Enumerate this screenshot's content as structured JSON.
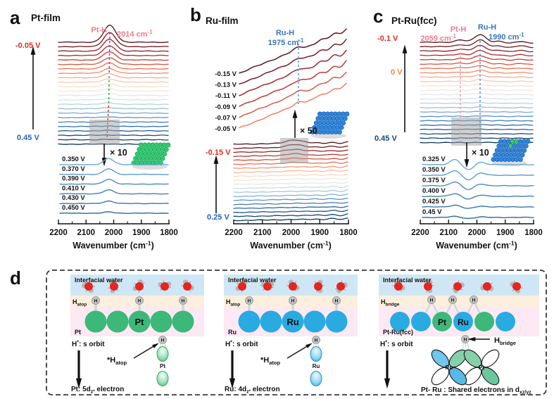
{
  "figure": {
    "panels": {
      "a": {
        "letter": "a",
        "title": "Pt-film",
        "peak_label": "Pt-H",
        "peak_value": {
          "base": "2014 cm",
          "sup": "-1"
        },
        "v_top": "-0.05 V",
        "v_bottom": "0.45 V",
        "magnification": "× 10",
        "inset_potentials": [
          "0.350 V",
          "0.370 V",
          "0.390 V",
          "0.410 V",
          "0.430 V",
          "0.450 V"
        ],
        "x_ticks": [
          "2200",
          "2100",
          "2000",
          "1900",
          "1800"
        ],
        "xlabel": {
          "base": "Wavenumber (cm",
          "sup": "-1",
          "post": ")"
        }
      },
      "b": {
        "letter": "b",
        "title": "Ru-film",
        "peak_label": "Ru-H",
        "peak_value": {
          "base": "1975 cm",
          "sup": "-1"
        },
        "v_top": "-0.15 V",
        "v_bottom": "0.25 V",
        "magnification": "× 50",
        "magnified_potentials": [
          "-0.15 V",
          "-0.13 V",
          "-0.11 V",
          "-0.09 V",
          "-0.07 V",
          "-0.05 V"
        ],
        "x_ticks": [
          "2200",
          "2100",
          "2000",
          "1900",
          "1800"
        ],
        "xlabel": {
          "base": "Wavenumber (cm",
          "sup": "-1",
          "post": ")"
        }
      },
      "c": {
        "letter": "c",
        "title": "Pt-Ru(fcc)",
        "peak1_label": "Pt-H",
        "peak1_value": {
          "base": "2059 cm",
          "sup": "-1"
        },
        "peak2_label": "Ru-H",
        "peak2_value": {
          "base": "1990 cm",
          "sup": "-1"
        },
        "v_top": "-0.1 V",
        "v_mid": "0 V",
        "v_bottom": "0.45 V",
        "magnification": "× 10",
        "inset_potentials": [
          "0.325 V",
          "0.350 V",
          "0.375 V",
          "0.400 V",
          "0.425 V",
          "0.45 V"
        ],
        "x_ticks": [
          "2200",
          "2100",
          "2000",
          "1900",
          "1800"
        ],
        "xlabel": {
          "base": "Wavenumber (cm",
          "sup": "-1",
          "post": ")"
        }
      },
      "d": {
        "letter": "d",
        "h_symbol": "H",
        "schemes": [
          {
            "water_label": "Interfacial water",
            "site": {
              "base": "H",
              "sub": "atop"
            },
            "surface": "Pt",
            "center_atom": "Pt",
            "orbit": {
              "base": "H",
              "sup": "*",
              "post": ": s orbit"
            },
            "ads": {
              "base": "*H",
              "sub": "atop"
            },
            "orbital_atom": "Pt",
            "result": {
              "base": "Pt: 5d",
              "sub": "z²",
              "post": " electron"
            }
          },
          {
            "water_label": "Interfacial water",
            "site": {
              "base": "H",
              "sub": "atop"
            },
            "surface": "Ru",
            "center_atom": "Ru",
            "orbit": {
              "base": "H",
              "sup": "*",
              "post": ": s orbit"
            },
            "ads": {
              "base": "*H",
              "sub": "atop"
            },
            "orbital_atom": "Ru",
            "result": {
              "base": "Ru: 4d",
              "sub": "z²",
              "post": " electron"
            }
          },
          {
            "water_label": "Interfacial water",
            "site": {
              "base": "H",
              "sub": "bridge"
            },
            "surface": "Pt-Ru(fcc)",
            "pt_atom": "Pt",
            "ru_atom": "Ru",
            "orbit": {
              "base": "H",
              "sup": "*",
              "post": ": s orbit"
            },
            "bridge": {
              "base": "H",
              "sub": "bridge"
            },
            "orbital_left": "Ru",
            "orbital_right": "Pt",
            "result": {
              "base": "Pt- Ru : Shared electrons in d",
              "sub": "xz/yz"
            }
          }
        ]
      }
    }
  },
  "chart_data": [
    {
      "type": "line",
      "panel": "a",
      "title": "Pt-film",
      "xlabel": "Wavenumber (cm-1)",
      "x_range": [
        2200,
        1800
      ],
      "x_ticks": [
        2200,
        2100,
        2000,
        1900,
        1800
      ],
      "peaks": [
        {
          "label": "Pt-H",
          "wavenumber": 2014
        }
      ],
      "potential_series": {
        "from": "-0.05 V",
        "to": "0.45 V",
        "n_curves": 24,
        "colormap": "dark red (negative potential, large Pt-H peak) to dark blue (positive potential, flat)"
      },
      "inset": {
        "magnification": "× 10",
        "potentials": [
          "0.350 V",
          "0.370 V",
          "0.390 V",
          "0.410 V",
          "0.430 V",
          "0.450 V"
        ],
        "description": "magnified Pt-H band near 2020 cm-1 vanishing with increasing potential"
      }
    },
    {
      "type": "line",
      "panel": "b",
      "title": "Ru-film",
      "xlabel": "Wavenumber (cm-1)",
      "x_range": [
        2200,
        1800
      ],
      "x_ticks": [
        2200,
        2100,
        2000,
        1900,
        1800
      ],
      "peaks": [
        {
          "label": "Ru-H",
          "wavenumber": 1975
        }
      ],
      "potential_series": {
        "from": "-0.15 V",
        "to": "0.25 V",
        "n_curves": 20,
        "colormap": "dark red (negative) to dark blue (positive), nearly flat bands"
      },
      "magnified": {
        "magnification": "× 50",
        "potentials": [
          "-0.15 V",
          "-0.13 V",
          "-0.11 V",
          "-0.09 V",
          "-0.07 V",
          "-0.05 V"
        ],
        "description": "weak Ru-H feature at 1975 cm-1 on rising noisy baseline"
      }
    },
    {
      "type": "line",
      "panel": "c",
      "title": "Pt-Ru(fcc)",
      "xlabel": "Wavenumber (cm-1)",
      "x_range": [
        2200,
        1800
      ],
      "x_ticks": [
        2200,
        2100,
        2000,
        1900,
        1800
      ],
      "peaks": [
        {
          "label": "Pt-H",
          "wavenumber": 2059
        },
        {
          "label": "Ru-H",
          "wavenumber": 1990
        }
      ],
      "potential_series": {
        "from": "-0.1 V",
        "mid": "0 V",
        "to": "0.45 V",
        "n_curves": 24,
        "colormap": "dark red to dark blue; Ru-H peak dominant, small Pt-H shoulder"
      },
      "inset": {
        "magnification": "× 10",
        "potentials": [
          "0.325 V",
          "0.350 V",
          "0.375 V",
          "0.400 V",
          "0.425 V",
          "0.45 V"
        ],
        "description": "derivative-like wiggle between 2100 and 1990 cm-1 fading with potential"
      }
    }
  ],
  "colors": {
    "negative_potential_label": "#e02b20",
    "positive_potential_label": "#2166ac",
    "mid_potential_label": "#f08a3c",
    "pt_h_label": "#e87d8d",
    "ru_h_label": "#3a74b5",
    "pt_atom": "#3cb878",
    "ru_atom": "#29abe2",
    "water_band": "#cfe7f4",
    "h_band": "#fcefdd",
    "metal_band": "#fce9f4",
    "gray_box": "#a0a0a0",
    "curve_ramp_ends": [
      "#4f1118",
      "#0b3560"
    ]
  }
}
